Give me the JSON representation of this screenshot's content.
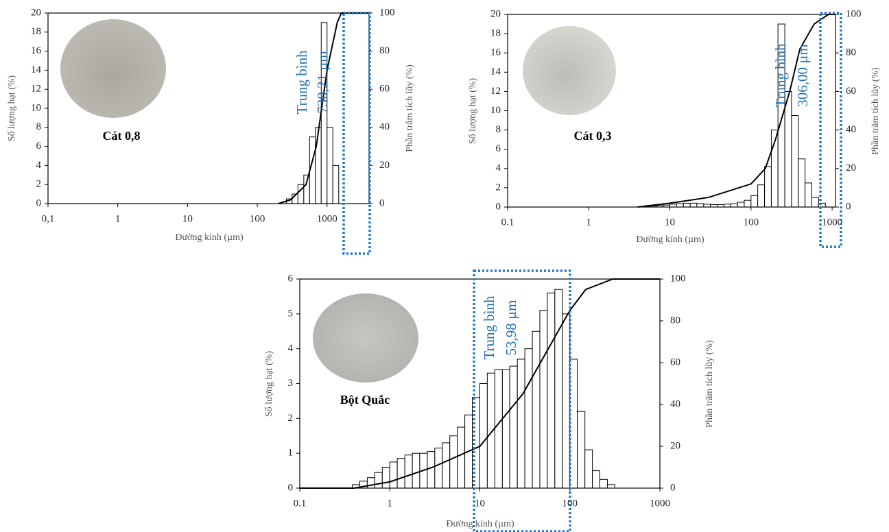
{
  "chart_data": [
    {
      "type": "histogram",
      "xscale": "log",
      "color": "#000000",
      "ylabel": "Số lượng hạt (%)",
      "y2label": "Phần trăm tích lũy (%)",
      "xlabel": "Đường kính (µm)",
      "sample_label": "Cát 0,8",
      "annotation": [
        "Trung bình",
        "730,21 µm"
      ],
      "xlim": [
        0.1,
        4000
      ],
      "xticks": [
        {
          "value": 0.1,
          "label": "0,1"
        },
        1,
        10,
        100,
        1000
      ],
      "ylim": [
        0,
        20
      ],
      "yticks": [
        0,
        2,
        4,
        6,
        8,
        10,
        12,
        14,
        16,
        18,
        20
      ],
      "y2lim": [
        0,
        100
      ],
      "y2ticks": [
        0,
        20,
        40,
        60,
        80,
        100
      ],
      "bins": [
        261,
        316,
        383,
        464,
        562,
        681,
        825,
        1000,
        1210,
        1470
      ],
      "values": [
        0.5,
        1,
        2,
        3,
        7,
        8,
        19,
        8,
        4
      ],
      "line": {
        "axis": "y2",
        "x": [
          200,
          300,
          500,
          700,
          1000,
          1400,
          1600,
          4000
        ],
        "values": [
          0,
          2,
          10,
          30,
          70,
          95,
          100,
          100
        ]
      }
    },
    {
      "type": "histogram",
      "xscale": "log",
      "color": "#000000",
      "ylabel": "Số lượng hạt (%)",
      "y2label": "Phần trăm tích lũy (%)",
      "xlabel": "Đường kính (µm)",
      "sample_label": "Cát 0,3",
      "annotation": [
        "Trung bình",
        "306,00 µm"
      ],
      "xlim": [
        0.1,
        1100
      ],
      "xticks": [
        0.1,
        1,
        10,
        100,
        1000
      ],
      "ylim": [
        0,
        20
      ],
      "yticks": [
        0,
        2,
        4,
        6,
        8,
        10,
        12,
        14,
        16,
        18,
        20
      ],
      "y2lim": [
        0,
        100
      ],
      "y2ticks": [
        0,
        20,
        40,
        60,
        80,
        100
      ],
      "bins": [
        4.64,
        5.62,
        6.81,
        8.25,
        10,
        12.1,
        14.7,
        17.8,
        21.5,
        26.1,
        31.6,
        38.3,
        46.4,
        56.2,
        68.1,
        82.5,
        100,
        121,
        147,
        178,
        215,
        261,
        316,
        383,
        464,
        562,
        681,
        825
      ],
      "values": [
        0.05,
        0.1,
        0.15,
        0.2,
        0.3,
        0.35,
        0.4,
        0.4,
        0.35,
        0.3,
        0.25,
        0.25,
        0.3,
        0.35,
        0.5,
        0.7,
        1.2,
        2.3,
        4.2,
        8,
        19,
        12,
        9.5,
        5,
        2.5,
        1,
        0.4
      ],
      "line": {
        "axis": "y2",
        "x": [
          4,
          10,
          30,
          100,
          150,
          200,
          300,
          400,
          600,
          900,
          1100
        ],
        "values": [
          0,
          2,
          5,
          12,
          20,
          35,
          60,
          82,
          95,
          100,
          100
        ]
      }
    },
    {
      "type": "histogram",
      "xscale": "log",
      "color": "#000000",
      "ylabel": "Số lượng hạt (%)",
      "y2label": "Phần trăm tích lũy (%)",
      "xlabel": "Đường kính (µm)",
      "sample_label": "Bột Quắc",
      "annotation": [
        "Trung bình",
        "53,98 µm"
      ],
      "xlim": [
        0.1,
        1000
      ],
      "xticks": [
        0.1,
        1,
        10,
        100,
        1000
      ],
      "ylim": [
        0,
        6
      ],
      "yticks": [
        0,
        1,
        2,
        3,
        4,
        5,
        6
      ],
      "y2lim": [
        0,
        100
      ],
      "y2ticks": [
        0,
        20,
        40,
        60,
        80,
        100
      ],
      "bins": [
        0.383,
        0.464,
        0.562,
        0.681,
        0.825,
        1,
        1.21,
        1.47,
        1.78,
        2.15,
        2.61,
        3.16,
        3.83,
        4.64,
        5.62,
        6.81,
        8.25,
        10,
        12.1,
        14.7,
        17.8,
        21.5,
        26.1,
        31.6,
        38.3,
        46.4,
        56.2,
        68.1,
        82.5,
        100,
        121,
        147,
        178,
        215,
        261,
        316
      ],
      "values": [
        0.1,
        0.2,
        0.3,
        0.45,
        0.6,
        0.75,
        0.85,
        0.95,
        1.0,
        1.0,
        1.05,
        1.15,
        1.3,
        1.5,
        1.75,
        2.1,
        2.6,
        3.0,
        3.3,
        3.4,
        3.4,
        3.5,
        3.7,
        4.0,
        4.5,
        5.1,
        5.6,
        5.7,
        5.0,
        3.7,
        2.2,
        1.1,
        0.5,
        0.25,
        0.1
      ],
      "line": {
        "axis": "y2",
        "x": [
          0.1,
          0.4,
          1,
          3,
          10,
          30,
          60,
          100,
          150,
          300,
          1000
        ],
        "values": [
          0,
          0,
          3,
          10,
          20,
          45,
          68,
          85,
          95,
          100,
          100
        ]
      }
    }
  ]
}
